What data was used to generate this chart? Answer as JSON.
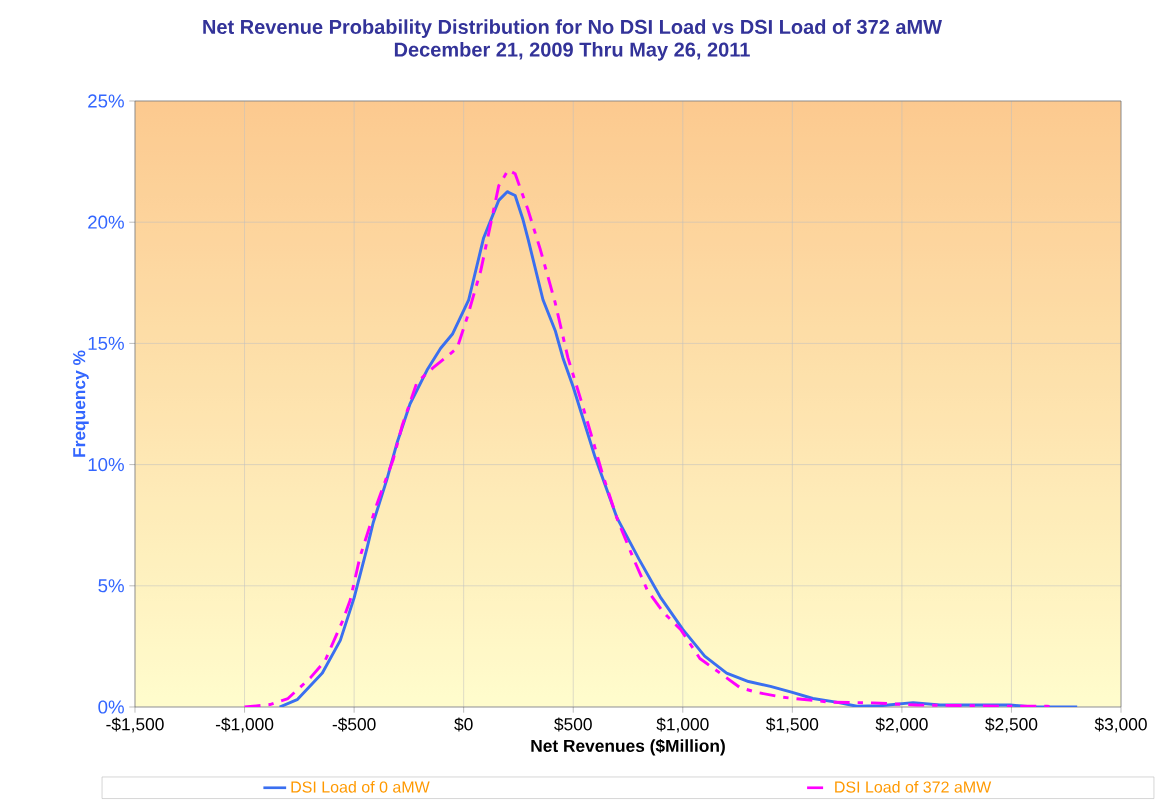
{
  "chart_data": {
    "type": "line",
    "title": "Net Revenue Probability Distribution for No DSI Load  vs DSI Load of 372 aMW",
    "subtitle": "December 21, 2009 Thru May 26, 2011",
    "xlabel": "Net Revenues ($Million)",
    "ylabel": "Frequency %",
    "xlim": [
      -1500,
      3000
    ],
    "ylim": [
      0,
      25
    ],
    "xticks": [
      {
        "value": -1500,
        "label": "-$1,500"
      },
      {
        "value": -1000,
        "label": "-$1,000"
      },
      {
        "value": -500,
        "label": "-$500"
      },
      {
        "value": 0,
        "label": "$0"
      },
      {
        "value": 500,
        "label": "$500"
      },
      {
        "value": 1000,
        "label": "$1,000"
      },
      {
        "value": 1500,
        "label": "$1,500"
      },
      {
        "value": 2000,
        "label": "$2,000"
      },
      {
        "value": 2500,
        "label": "$2,500"
      },
      {
        "value": 3000,
        "label": "$3,000"
      }
    ],
    "yticks": [
      {
        "value": 0,
        "label": "0%"
      },
      {
        "value": 5,
        "label": "5%"
      },
      {
        "value": 10,
        "label": "10%"
      },
      {
        "value": 15,
        "label": "15%"
      },
      {
        "value": 20,
        "label": "20%"
      },
      {
        "value": 25,
        "label": "25%"
      }
    ],
    "grid": true,
    "legend": "bottom",
    "marker": "none",
    "series": [
      {
        "name": "DSI Load of 0 aMW",
        "color": "#3a6ff0",
        "line_style": "solid",
        "x": [
          -840,
          -760,
          -645,
          -563,
          -500,
          -440,
          -413,
          -350,
          -304,
          -245,
          -167,
          -105,
          -50,
          23,
          91,
          160,
          199,
          235,
          271,
          294,
          362,
          419,
          453,
          500,
          600,
          700,
          800,
          900,
          1000,
          1100,
          1200,
          1300,
          1400,
          1500,
          1594,
          1700,
          1795,
          1900,
          2051,
          2174,
          2494,
          2599,
          2800
        ],
        "values": [
          0,
          0.3,
          1.4,
          2.75,
          4.5,
          6.6,
          7.6,
          9.4,
          10.9,
          12.5,
          13.9,
          14.8,
          15.4,
          16.8,
          19.35,
          20.9,
          21.26,
          21.1,
          20.1,
          19.3,
          16.8,
          15.5,
          14.4,
          13.2,
          10.3,
          7.8,
          6.1,
          4.5,
          3.2,
          2.1,
          1.4,
          1.05,
          0.85,
          0.6,
          0.35,
          0.2,
          0.03,
          0.05,
          0.18,
          0.08,
          0.08,
          0,
          0
        ]
      },
      {
        "name": "DSI Load of 372 aMW",
        "color": "#ff00ff",
        "line_style": "dashed",
        "x": [
          -1000,
          -884,
          -802,
          -700,
          -633,
          -555,
          -518,
          -473,
          -395,
          -322,
          -281,
          -213,
          -139,
          -30,
          17,
          78,
          160,
          203,
          235,
          294,
          349,
          417,
          476,
          534,
          580,
          634,
          703,
          776,
          839,
          912,
          990,
          1078,
          1170,
          1261,
          1339,
          1458,
          1672,
          1868,
          2069,
          2265,
          2462,
          2662,
          2700
        ],
        "values": [
          0,
          0.1,
          0.35,
          1.2,
          1.9,
          3.5,
          4.4,
          6.2,
          8.4,
          10.2,
          11.6,
          13.4,
          14.0,
          14.8,
          16.1,
          18.0,
          21.5,
          22.15,
          22.0,
          20.5,
          18.9,
          16.7,
          14.4,
          12.7,
          11.3,
          9.6,
          7.7,
          6.1,
          4.8,
          3.9,
          3.2,
          2.0,
          1.4,
          0.8,
          0.6,
          0.4,
          0.2,
          0.17,
          0.08,
          0.06,
          0.03,
          0.03,
          0
        ]
      }
    ]
  }
}
